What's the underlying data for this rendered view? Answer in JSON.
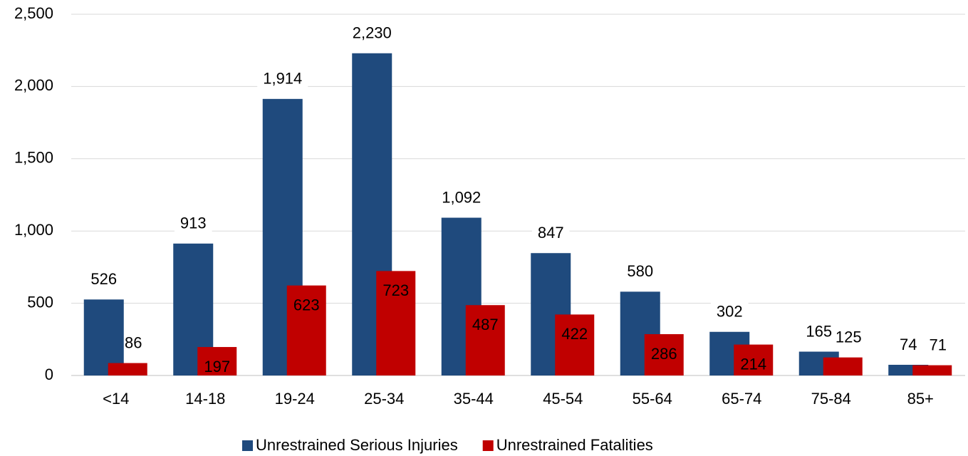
{
  "chart_data": {
    "type": "bar",
    "categories": [
      "<14",
      "14-18",
      "19-24",
      "25-34",
      "35-44",
      "45-54",
      "55-64",
      "65-74",
      "75-84",
      "85+"
    ],
    "series": [
      {
        "name": "Unrestrained Serious Injuries",
        "color": "#1f4a7d",
        "values": [
          526,
          913,
          1914,
          2230,
          1092,
          847,
          580,
          302,
          165,
          74
        ],
        "value_labels": [
          "526",
          "913",
          "1,914",
          "2,230",
          "1,092",
          "847",
          "580",
          "302",
          "165",
          "74"
        ]
      },
      {
        "name": "Unrestrained Fatalities",
        "color": "#c00000",
        "values": [
          86,
          197,
          623,
          723,
          487,
          422,
          286,
          214,
          125,
          71
        ],
        "value_labels": [
          "86",
          "197",
          "623",
          "723",
          "487",
          "422",
          "286",
          "214",
          "125",
          "71"
        ]
      }
    ],
    "ylim": [
      0,
      2500
    ],
    "yticks": [
      0,
      500,
      {
        "value": 1000,
        "label": "1,000"
      },
      {
        "value": 1500,
        "label": "1,500"
      },
      {
        "value": 2000,
        "label": "2,000"
      },
      {
        "value": 2500,
        "label": "2,500"
      }
    ],
    "grid": true,
    "legend": "bottom"
  }
}
